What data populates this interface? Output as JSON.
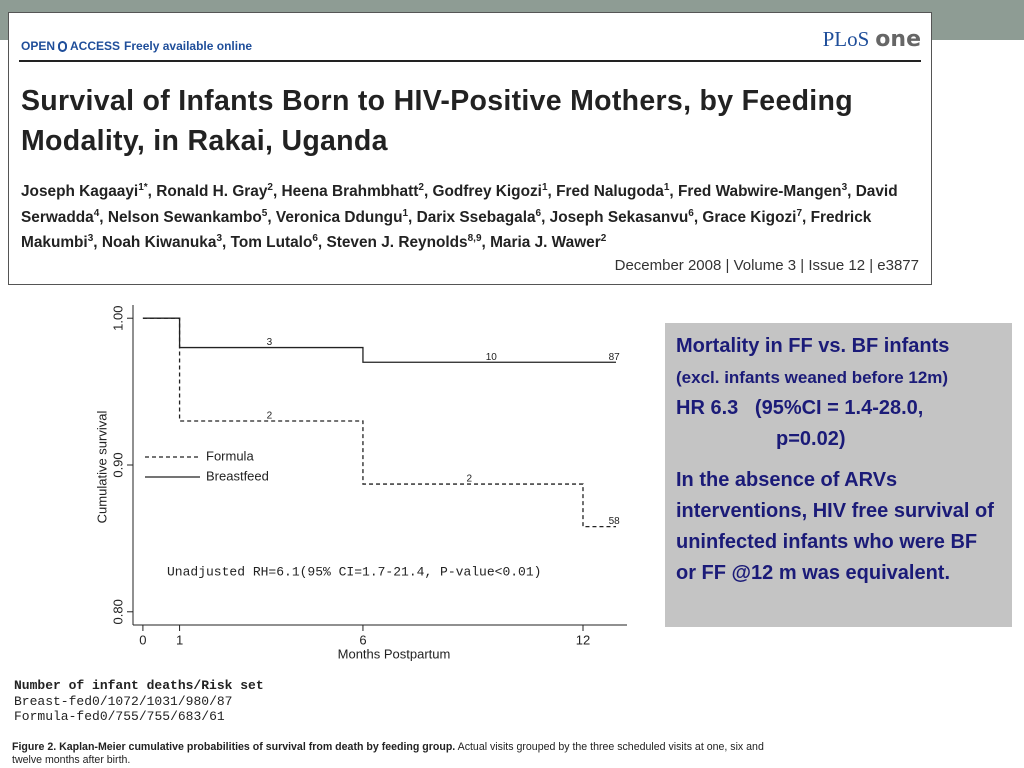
{
  "header": {
    "open": "OPEN",
    "access": "ACCESS",
    "free": "Freely available online",
    "logo": "PLoS",
    "logo_one": "one",
    "title": "Survival of Infants Born to HIV-Positive Mothers, by Feeding Modality, in Rakai, Uganda",
    "authors": [
      {
        "name": "Joseph Kagaayi",
        "sup": "1*",
        "sep": ","
      },
      {
        "name": "Ronald H. Gray",
        "sup": "2",
        "sep": ","
      },
      {
        "name": "Heena Brahmbhatt",
        "sup": "2",
        "sep": ","
      },
      {
        "name": "Godfrey Kigozi",
        "sup": "1",
        "sep": ","
      },
      {
        "name": "Fred Nalugoda",
        "sup": "1",
        "sep": ","
      },
      {
        "name": "Fred Wabwire-Mangen",
        "sup": "3",
        "sep": ","
      },
      {
        "name": "David Serwadda",
        "sup": "4",
        "sep": ","
      },
      {
        "name": "Nelson Sewankambo",
        "sup": "5",
        "sep": ","
      },
      {
        "name": "Veronica Ddungu",
        "sup": "1",
        "sep": ","
      },
      {
        "name": "Darix Ssebagala",
        "sup": "6",
        "sep": ","
      },
      {
        "name": "Joseph Sekasanvu",
        "sup": "6",
        "sep": ","
      },
      {
        "name": "Grace Kigozi",
        "sup": "7",
        "sep": ","
      },
      {
        "name": "Fredrick Makumbi",
        "sup": "3",
        "sep": ","
      },
      {
        "name": "Noah Kiwanuka",
        "sup": "3",
        "sep": ","
      },
      {
        "name": "Tom Lutalo",
        "sup": "6",
        "sep": ","
      },
      {
        "name": "Steven J. Reynolds",
        "sup": "8,9",
        "sep": ","
      },
      {
        "name": "Maria J. Wawer",
        "sup": "2"
      }
    ],
    "citation": "December 2008 | Volume 3 | Issue 12 | e3877"
  },
  "chart_data": {
    "type": "step",
    "ylabel": "Cumulative survival",
    "xlabel": "Months Postpartum",
    "xlim": [
      -0.27,
      13.2
    ],
    "ylim": [
      0.791,
      1.009
    ],
    "xticks": [
      0,
      1,
      6,
      12
    ],
    "yticks": [
      {
        "value": 0.8,
        "label": "0.80"
      },
      {
        "value": 0.9,
        "label": "0.90"
      },
      {
        "value": 1,
        "label": "1.00"
      }
    ],
    "series": [
      {
        "name": "Formula",
        "color": "#222222",
        "dashed": true,
        "x": [
          0,
          1,
          6,
          12,
          12.9
        ],
        "values": [
          1,
          0.93,
          0.887,
          0.858,
          0.858
        ]
      },
      {
        "name": "Breastfeed",
        "color": "#222222",
        "dashed": false,
        "x": [
          0,
          1,
          6,
          12.9
        ],
        "values": [
          1,
          0.98,
          0.97,
          0.97
        ]
      }
    ],
    "annotations": [
      {
        "text": "3",
        "x": 3.45,
        "y": 0.9835
      },
      {
        "text": "10",
        "x": 9.5,
        "y": 0.9735
      },
      {
        "text": "87",
        "x": 12.85,
        "y": 0.9735
      },
      {
        "text": "2",
        "x": 3.45,
        "y": 0.9335
      },
      {
        "text": "2",
        "x": 8.9,
        "y": 0.8905
      },
      {
        "text": "58",
        "x": 12.85,
        "y": 0.8615
      }
    ],
    "note": "Unadjusted RH=6.1(95% CI=1.7-21.4, P-value<0.01)"
  },
  "table": {
    "title": "Number of infant deaths/Risk set",
    "rows": [
      [
        "Breast-fed",
        "0/107",
        "2/103",
        "1/98",
        "0/87"
      ],
      [
        "Formula-fed",
        "0/75",
        "5/75",
        "5/68",
        "3/61"
      ]
    ]
  },
  "caption": {
    "bold": "Figure 2. Kaplan-Meier cumulative probabilities of survival from death by feeding group.",
    "text": "Actual visits grouped by the three scheduled visits at one, six and twelve months after birth."
  },
  "sidebox": {
    "line1": "Mortality in FF vs. BF infants",
    "line2": "(excl. infants weaned before 12m)",
    "line3": "HR 6.3   (95%CI = 1.4-28.0,",
    "line4": "p=0.02)",
    "para": "In the absence of ARVs interventions, HIV free survival of uninfected infants who were BF or FF @12 m was equivalent."
  }
}
